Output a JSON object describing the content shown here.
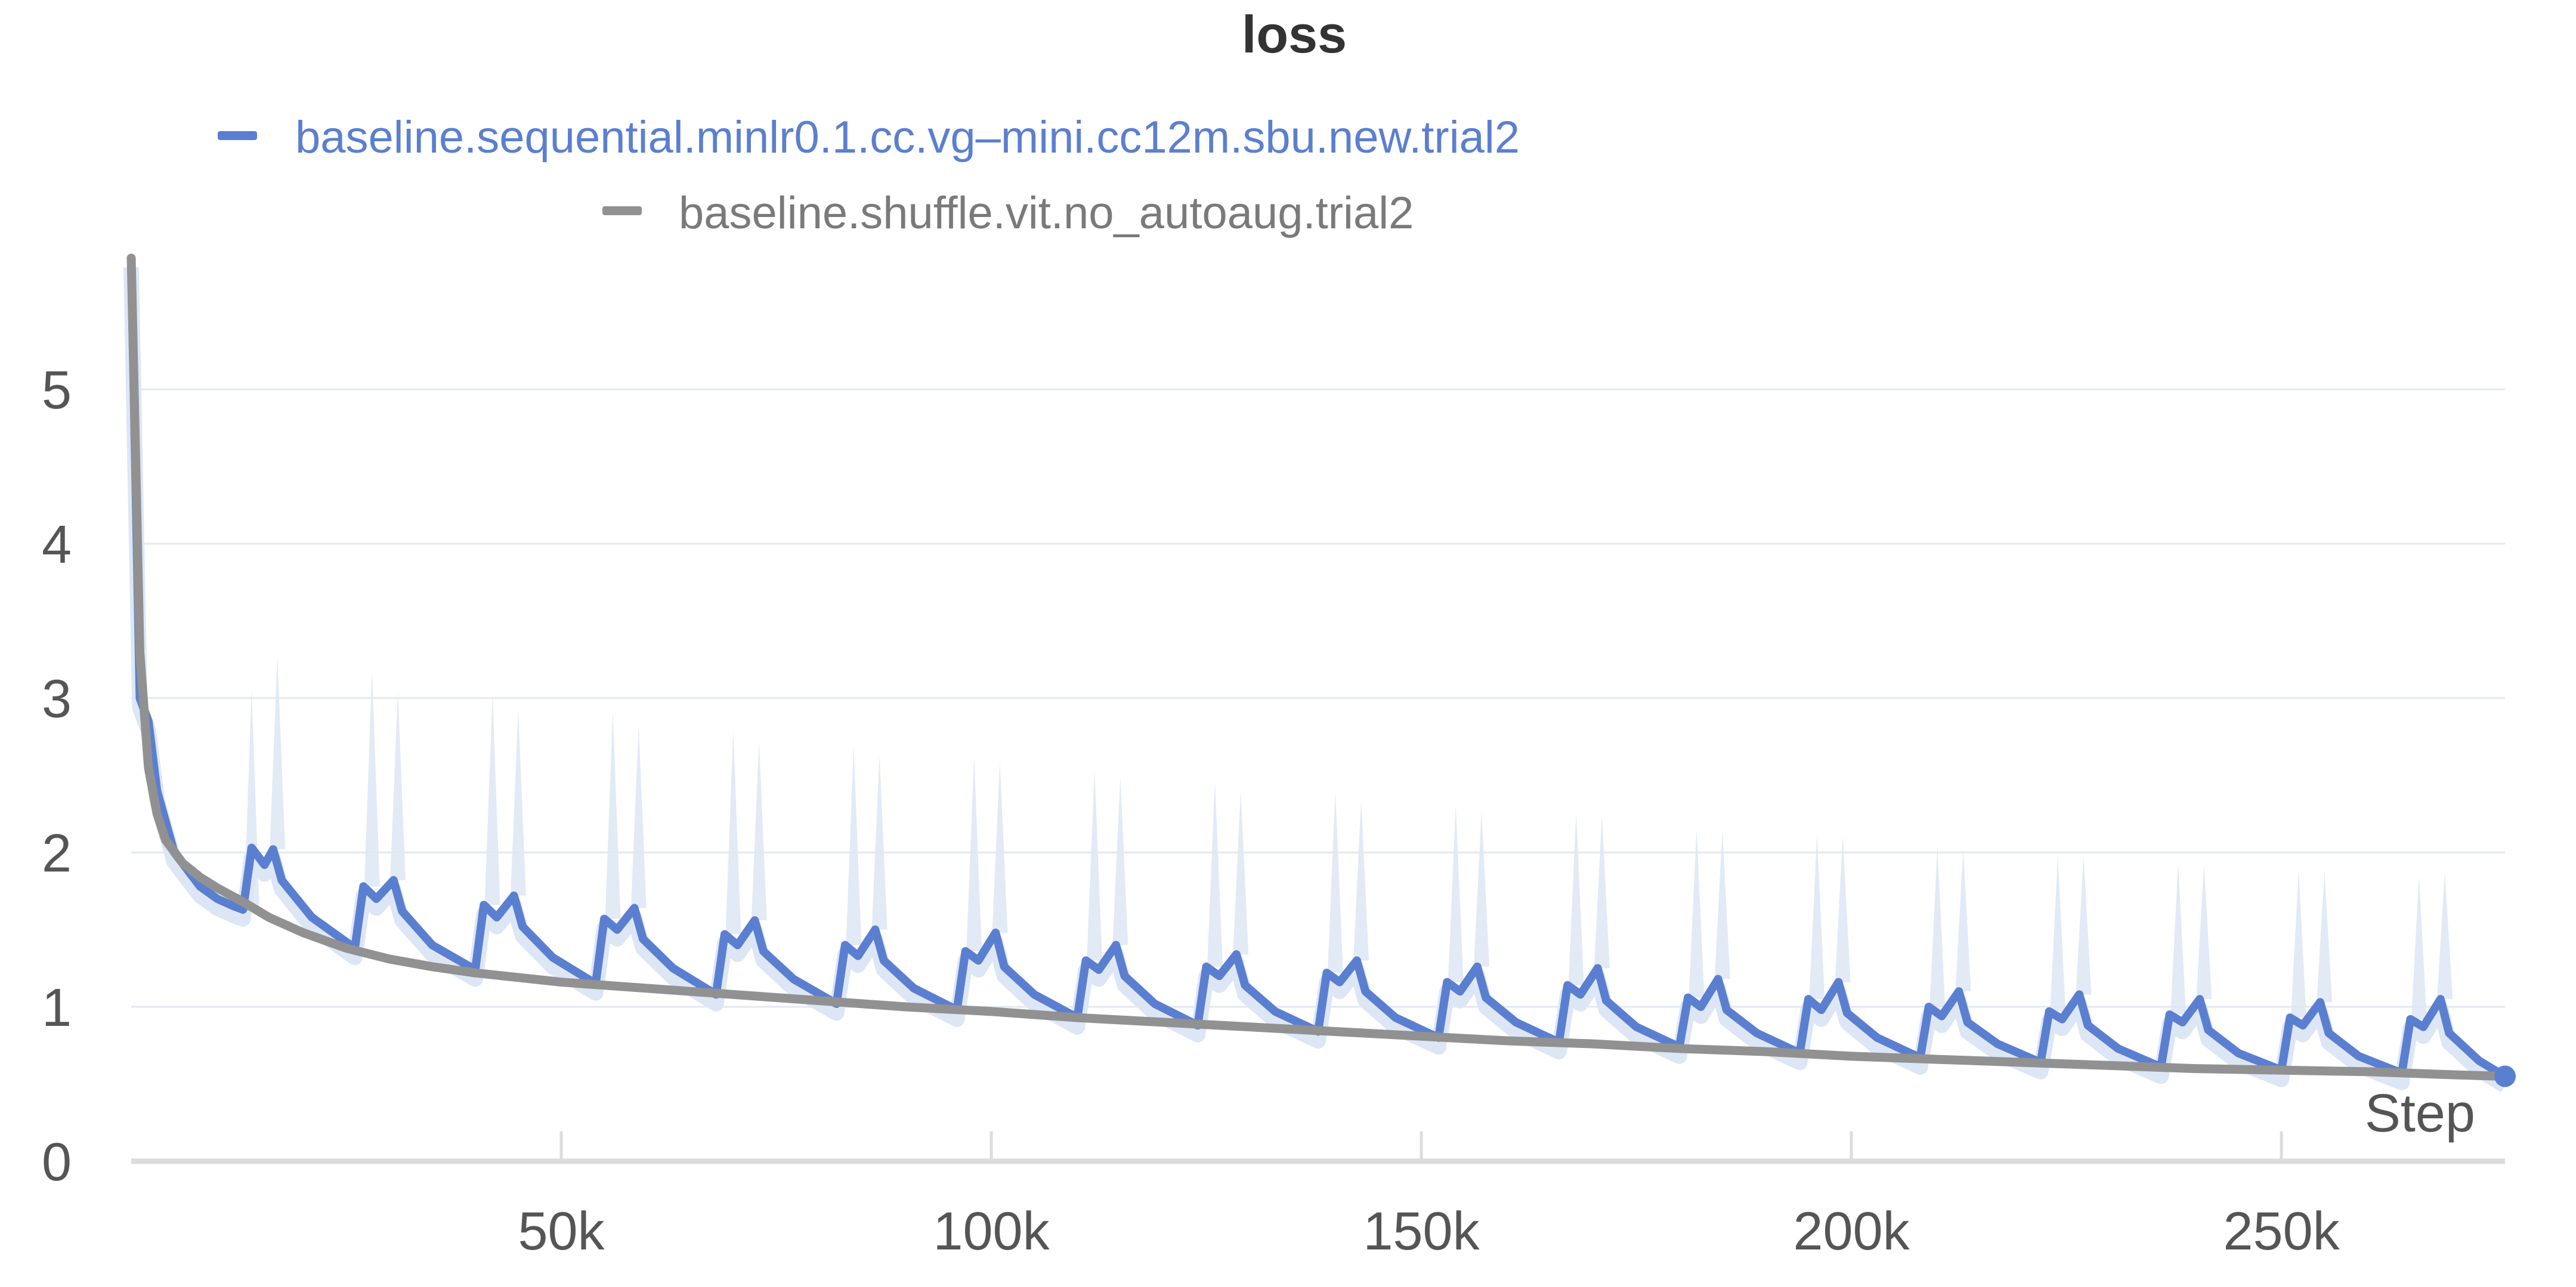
{
  "chart_data": {
    "type": "line",
    "title": "loss",
    "xlabel": "Step",
    "ylabel": "",
    "xlim": [
      0,
      276000
    ],
    "ylim": [
      0,
      5.9
    ],
    "grid": true,
    "legend_placement": "top",
    "x_ticks": [
      50000,
      100000,
      150000,
      200000,
      250000
    ],
    "x_tick_labels": [
      "50k",
      "100k",
      "150k",
      "200k",
      "250k"
    ],
    "y_ticks": [
      0,
      1,
      2,
      3,
      4,
      5
    ],
    "y_tick_labels": [
      "0",
      "1",
      "2",
      "3",
      "4",
      "5"
    ],
    "series": [
      {
        "name": "baseline.sequential.minlr0.1.cc.vg–mini.cc12m.sbu.new.trial2",
        "color": "#5b7fd0",
        "raw_color": "#dde6f5",
        "cycle_period": 14000,
        "x": [
          0,
          1000,
          2000,
          3000,
          5000,
          8000,
          10000,
          12000,
          13000,
          14000,
          15500,
          16500,
          17500,
          21000,
          26000,
          27000,
          28500,
          30500,
          31500,
          35000,
          40000,
          41000,
          42500,
          44500,
          45500,
          49000,
          54000,
          55000,
          56500,
          58500,
          59500,
          63000,
          68000,
          69000,
          70500,
          72500,
          73500,
          77000,
          82000,
          83000,
          84500,
          86500,
          87500,
          91000,
          96000,
          97000,
          98500,
          100500,
          101500,
          105000,
          110000,
          111000,
          112500,
          114500,
          115500,
          119000,
          124000,
          125000,
          126500,
          128500,
          129500,
          133000,
          138000,
          139000,
          140500,
          142500,
          143500,
          147000,
          152000,
          153000,
          154500,
          156500,
          157500,
          161000,
          166000,
          167000,
          168500,
          170500,
          171500,
          175000,
          180000,
          181000,
          182500,
          184500,
          185500,
          189000,
          194000,
          195000,
          196500,
          198500,
          199500,
          203000,
          208000,
          209000,
          210500,
          212500,
          213500,
          217000,
          222000,
          223000,
          224500,
          226500,
          227500,
          231000,
          236000,
          237000,
          238500,
          240500,
          241500,
          245000,
          250000,
          251000,
          252500,
          254500,
          255500,
          259000,
          264000,
          265000,
          266500,
          268500,
          269500,
          273000,
          276000
        ],
        "values": [
          5.85,
          3.0,
          2.85,
          2.4,
          2.0,
          1.78,
          1.7,
          1.65,
          1.63,
          2.03,
          1.92,
          2.02,
          1.82,
          1.58,
          1.38,
          1.78,
          1.7,
          1.82,
          1.62,
          1.4,
          1.24,
          1.66,
          1.58,
          1.72,
          1.52,
          1.32,
          1.15,
          1.57,
          1.5,
          1.64,
          1.44,
          1.25,
          1.08,
          1.47,
          1.4,
          1.56,
          1.36,
          1.18,
          1.02,
          1.4,
          1.33,
          1.5,
          1.3,
          1.12,
          0.98,
          1.36,
          1.3,
          1.48,
          1.26,
          1.08,
          0.93,
          1.3,
          1.24,
          1.4,
          1.2,
          1.02,
          0.88,
          1.26,
          1.2,
          1.34,
          1.14,
          0.97,
          0.84,
          1.22,
          1.16,
          1.3,
          1.1,
          0.93,
          0.8,
          1.16,
          1.1,
          1.26,
          1.06,
          0.9,
          0.77,
          1.14,
          1.08,
          1.25,
          1.04,
          0.87,
          0.74,
          1.06,
          1.0,
          1.18,
          0.98,
          0.83,
          0.7,
          1.05,
          0.98,
          1.16,
          0.96,
          0.8,
          0.67,
          1.0,
          0.94,
          1.1,
          0.9,
          0.76,
          0.64,
          0.97,
          0.92,
          1.08,
          0.88,
          0.73,
          0.61,
          0.95,
          0.9,
          1.05,
          0.85,
          0.7,
          0.59,
          0.93,
          0.88,
          1.03,
          0.83,
          0.68,
          0.57,
          0.92,
          0.87,
          1.05,
          0.83,
          0.65,
          0.55
        ]
      },
      {
        "name": "baseline.shuffle.vit.no_autoaug.trial2",
        "color": "#919191",
        "x": [
          0,
          500,
          1000,
          2000,
          3000,
          4000,
          6000,
          8000,
          10000,
          13000,
          16000,
          20000,
          25000,
          30000,
          35000,
          40000,
          45000,
          50000,
          55000,
          60000,
          70000,
          80000,
          90000,
          100000,
          110000,
          120000,
          130000,
          140000,
          150000,
          160000,
          170000,
          180000,
          190000,
          200000,
          210000,
          220000,
          230000,
          240000,
          250000,
          260000,
          270000,
          276000
        ],
        "values": [
          5.85,
          4.6,
          3.3,
          2.55,
          2.25,
          2.08,
          1.93,
          1.84,
          1.77,
          1.68,
          1.58,
          1.48,
          1.38,
          1.31,
          1.26,
          1.22,
          1.19,
          1.16,
          1.14,
          1.12,
          1.08,
          1.04,
          1.0,
          0.97,
          0.93,
          0.9,
          0.87,
          0.84,
          0.81,
          0.78,
          0.76,
          0.73,
          0.71,
          0.68,
          0.66,
          0.64,
          0.62,
          0.6,
          0.59,
          0.58,
          0.56,
          0.55
        ]
      }
    ]
  }
}
